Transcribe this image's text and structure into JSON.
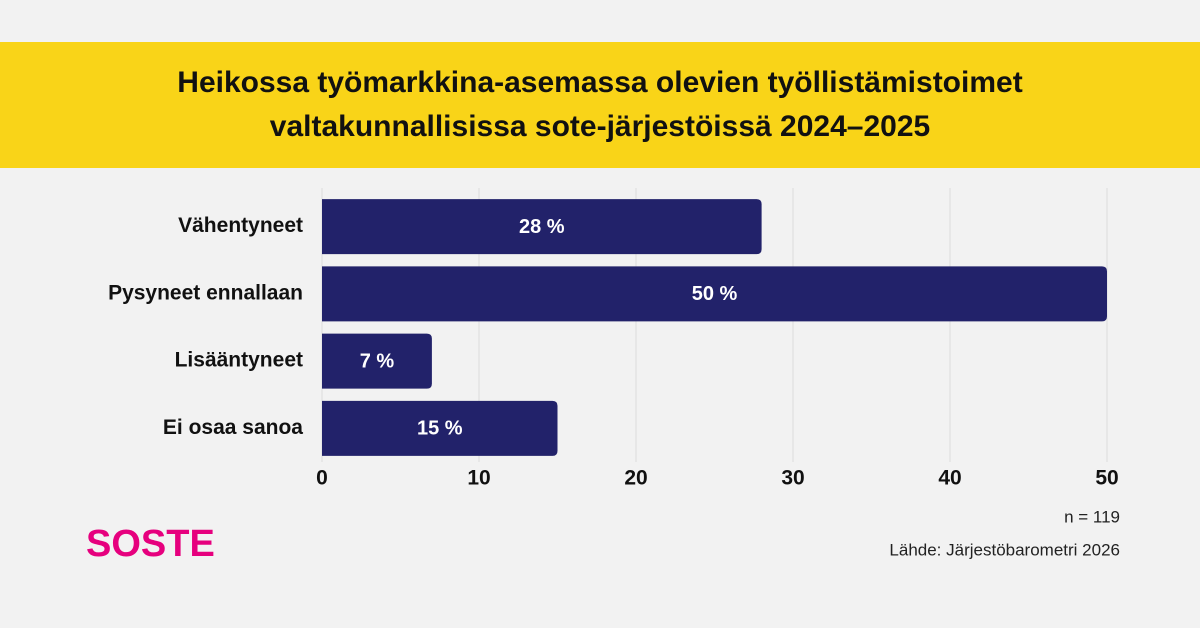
{
  "chart_data": {
    "type": "hbar",
    "title": "Heikossa työmarkkina-asemassa olevien työllistämistoimet",
    "subtitle": "valtakunnallisissa sote-järjestöissä 2024–2025",
    "categories": [
      "Vähentyneet",
      "Pysyneet ennallaan",
      "Lisääntyneet",
      "Ei osaa sanoa"
    ],
    "values": [
      28,
      50,
      7,
      15
    ],
    "value_labels": [
      "28 %",
      "50 %",
      "7 %",
      "15 %"
    ],
    "color": "#22226a",
    "xlim": [
      0,
      50
    ],
    "xticks": [
      0,
      10,
      20,
      30,
      40,
      50
    ],
    "grid": true,
    "note": "n = 119",
    "source": "Lähde: Järjestöbarometri 2026",
    "logo": "SOSTE"
  }
}
